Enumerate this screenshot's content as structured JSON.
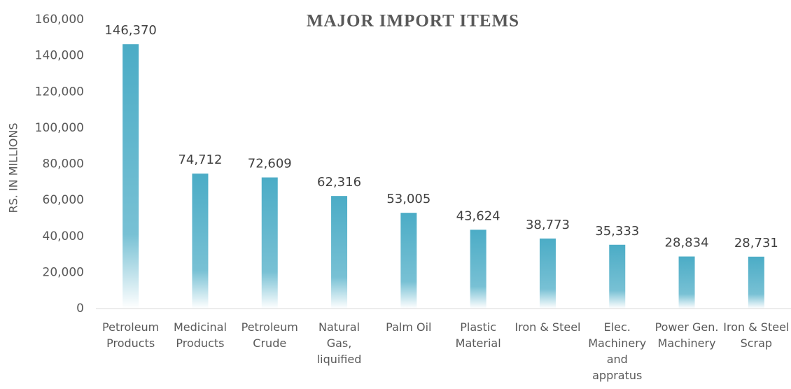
{
  "chart_data": {
    "type": "bar",
    "title": "MAJOR IMPORT ITEMS",
    "y_label": "RS. IN MILLIONS",
    "categories": [
      "Petroleum Products",
      "Medicinal Products",
      "Petroleum Crude",
      "Natural Gas, liquified",
      "Palm Oil",
      "Plastic Material",
      "Iron & Steel",
      "Elec. Machinery and appratus",
      "Power Gen. Machinery",
      "Iron & Steel Scrap"
    ],
    "values": [
      146370,
      74712,
      72609,
      62316,
      53005,
      43624,
      38773,
      35333,
      28834,
      28731
    ],
    "value_labels": [
      "146,370",
      "74,712",
      "72,609",
      "62,316",
      "53,005",
      "43,624",
      "38,773",
      "35,333",
      "28,834",
      "28,731"
    ],
    "color": "#4bacc6",
    "ylim": [
      0,
      160000
    ],
    "yticks": [
      0,
      {
        "value": 20000,
        "label": "20,000"
      },
      {
        "value": 40000,
        "label": "40,000"
      },
      {
        "value": 60000,
        "label": "60,000"
      },
      {
        "value": 80000,
        "label": "80,000"
      },
      {
        "value": 100000,
        "label": "100,000"
      },
      {
        "value": 120000,
        "label": "120,000"
      },
      {
        "value": 140000,
        "label": "140,000"
      },
      {
        "value": 160000,
        "label": "160,000"
      }
    ],
    "grid": false
  }
}
